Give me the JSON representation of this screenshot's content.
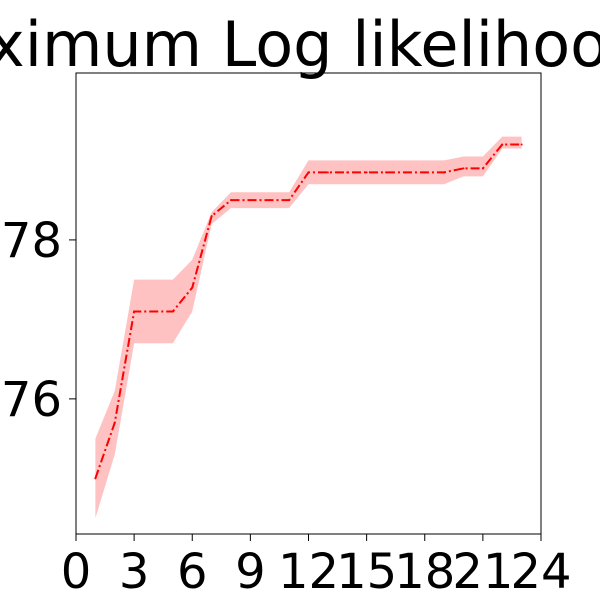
{
  "chart_data": {
    "type": "line",
    "title": "Maximum Log likelihood",
    "xlabel": "",
    "ylabel": "",
    "xlim": [
      0,
      24
    ],
    "ylim": [
      74.3,
      80.1
    ],
    "x_ticks": [
      0,
      3,
      6,
      9,
      12,
      15,
      18,
      21,
      24
    ],
    "y_ticks": [
      76,
      78
    ],
    "grid": false,
    "colors": {
      "line": "#ff0000",
      "band": "#ff9999"
    },
    "series": [
      {
        "line_style": "dash-dot",
        "x": [
          1,
          2,
          3,
          4,
          5,
          6,
          7,
          8,
          9,
          10,
          11,
          12,
          13,
          14,
          15,
          16,
          17,
          18,
          19,
          20,
          21,
          22,
          23
        ],
        "y": [
          75.0,
          75.7,
          77.1,
          77.1,
          77.1,
          77.4,
          78.3,
          78.5,
          78.5,
          78.5,
          78.5,
          78.85,
          78.85,
          78.85,
          78.85,
          78.85,
          78.85,
          78.85,
          78.85,
          78.9,
          78.9,
          79.2,
          79.2
        ],
        "lower": [
          74.5,
          75.3,
          76.7,
          76.7,
          76.7,
          77.1,
          78.2,
          78.4,
          78.4,
          78.4,
          78.4,
          78.7,
          78.7,
          78.7,
          78.7,
          78.7,
          78.7,
          78.7,
          78.7,
          78.8,
          78.8,
          79.15,
          79.15
        ],
        "upper": [
          75.5,
          76.1,
          77.5,
          77.5,
          77.5,
          77.75,
          78.35,
          78.6,
          78.6,
          78.6,
          78.6,
          79.0,
          79.0,
          79.0,
          79.0,
          79.0,
          79.0,
          79.0,
          79.0,
          79.05,
          79.05,
          79.3,
          79.3
        ]
      }
    ]
  }
}
